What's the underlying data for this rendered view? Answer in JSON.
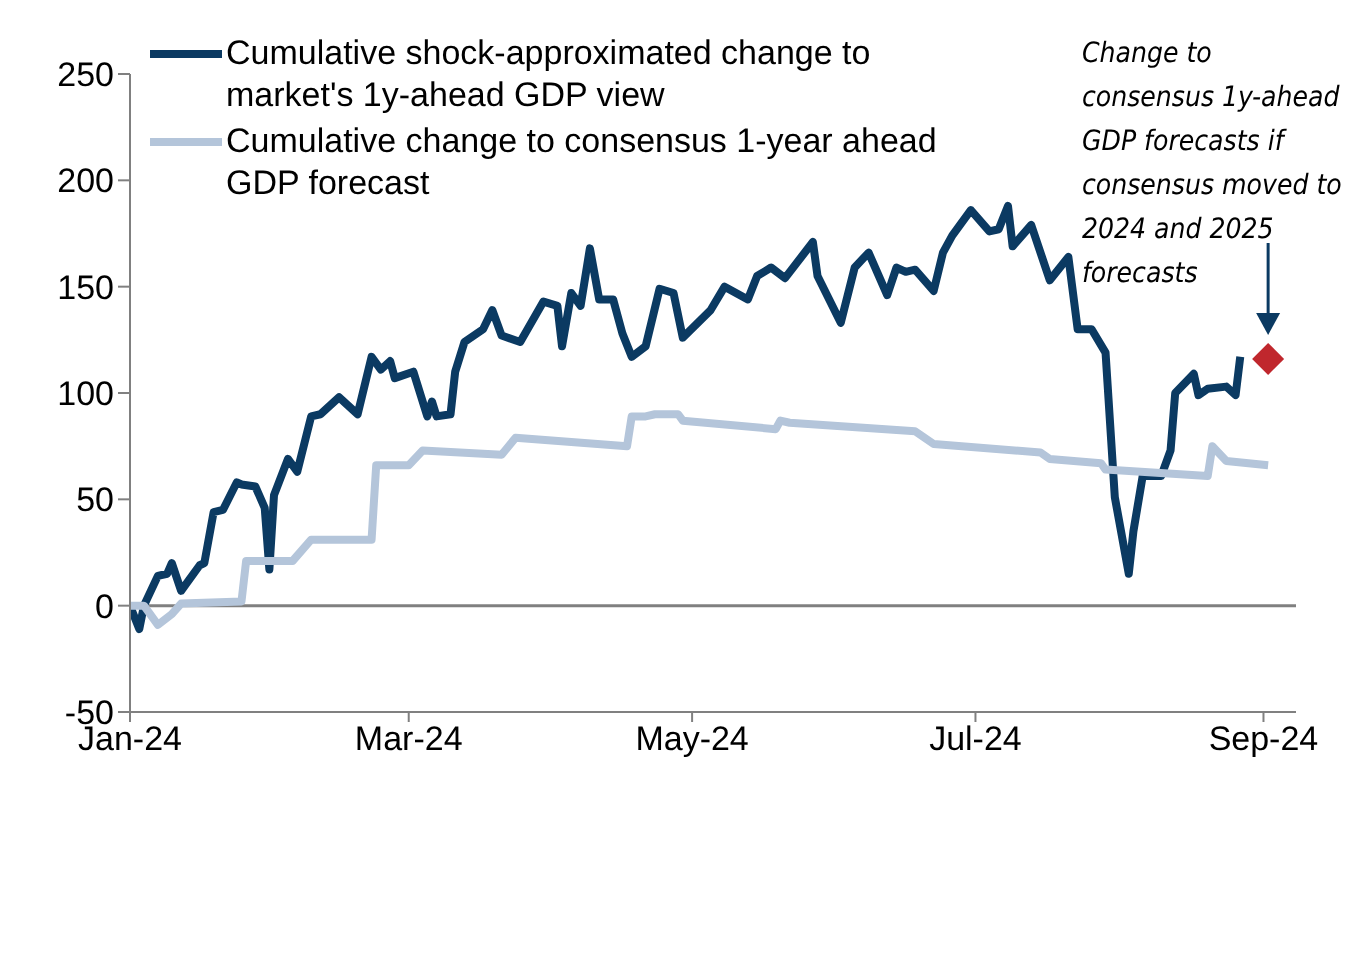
{
  "chart_data": {
    "type": "line",
    "xlim": [
      "2024-01-01",
      "2024-09-08"
    ],
    "xticks": [
      {
        "value": "2024-01-01",
        "label": "Jan-24"
      },
      {
        "value": "2024-03-01",
        "label": "Mar-24"
      },
      {
        "value": "2024-05-01",
        "label": "May-24"
      },
      {
        "value": "2024-07-01",
        "label": "Jul-24"
      },
      {
        "value": "2024-09-01",
        "label": "Sep-24"
      }
    ],
    "ylim": [
      -50,
      250
    ],
    "yticks": [
      -50,
      0,
      50,
      100,
      150,
      200,
      250
    ],
    "grid": false,
    "legend": "top left",
    "line_style": "solid",
    "marker": "none",
    "ref_lines": [
      {
        "axis": "y",
        "value": 0,
        "color": "#808080"
      }
    ],
    "annotations": [
      {
        "text": "Change to consensus 1y-ahead GDP forecasts if consensus moved to 2024 and 2025 forecasts",
        "x": "2024-09-02",
        "y": 116
      }
    ],
    "series": [
      {
        "name": "Cumulative shock-approximated change to market's 1y-ahead GDP view",
        "color": "#0b3a62",
        "x": [
          "2024-01-01",
          "2024-01-03",
          "2024-01-04",
          "2024-01-07",
          "2024-01-09",
          "2024-01-10",
          "2024-01-12",
          "2024-01-16",
          "2024-01-17",
          "2024-01-19",
          "2024-01-21",
          "2024-01-24",
          "2024-01-25",
          "2024-01-28",
          "2024-01-30",
          "2024-01-31",
          "2024-02-01",
          "2024-02-04",
          "2024-02-06",
          "2024-02-09",
          "2024-02-11",
          "2024-02-13",
          "2024-02-15",
          "2024-02-19",
          "2024-02-22",
          "2024-02-24",
          "2024-02-26",
          "2024-02-27",
          "2024-03-02",
          "2024-03-05",
          "2024-03-06",
          "2024-03-07",
          "2024-03-10",
          "2024-03-11",
          "2024-03-13",
          "2024-03-17",
          "2024-03-19",
          "2024-03-21",
          "2024-03-25",
          "2024-03-30",
          "2024-04-02",
          "2024-04-03",
          "2024-04-05",
          "2024-04-07",
          "2024-04-09",
          "2024-04-11",
          "2024-04-14",
          "2024-04-16",
          "2024-04-18",
          "2024-04-21",
          "2024-04-24",
          "2024-04-27",
          "2024-04-29",
          "2024-05-05",
          "2024-05-08",
          "2024-05-13",
          "2024-05-15",
          "2024-05-18",
          "2024-05-21",
          "2024-05-27",
          "2024-05-28",
          "2024-06-02",
          "2024-06-05",
          "2024-06-08",
          "2024-06-12",
          "2024-06-14",
          "2024-06-16",
          "2024-06-18",
          "2024-06-22",
          "2024-06-24",
          "2024-06-26",
          "2024-06-30",
          "2024-07-04",
          "2024-07-06",
          "2024-07-08",
          "2024-07-09",
          "2024-07-13",
          "2024-07-17",
          "2024-07-21",
          "2024-07-23",
          "2024-07-26",
          "2024-07-29",
          "2024-07-31",
          "2024-08-03",
          "2024-08-04",
          "2024-08-06",
          "2024-08-10",
          "2024-08-12",
          "2024-08-13",
          "2024-08-17",
          "2024-08-18",
          "2024-08-20",
          "2024-08-24",
          "2024-08-26",
          "2024-08-27"
        ],
        "values": [
          0,
          -11,
          0,
          14,
          15,
          20,
          7,
          19,
          20,
          44,
          45,
          58,
          57,
          56,
          46,
          17,
          52,
          69,
          63,
          89,
          90,
          94,
          98,
          90,
          117,
          111,
          115,
          107,
          110,
          89,
          96,
          89,
          90,
          110,
          124,
          130,
          139,
          127,
          124,
          143,
          141,
          122,
          147,
          141,
          168,
          144,
          144,
          128,
          117,
          122,
          149,
          147,
          126,
          139,
          150,
          144,
          155,
          159,
          154,
          171,
          155,
          133,
          159,
          166,
          146,
          159,
          157,
          158,
          148,
          166,
          174,
          186,
          176,
          177,
          188,
          169,
          179,
          153,
          164,
          130,
          130,
          119,
          51,
          15,
          35,
          61,
          61,
          73,
          100,
          109,
          99,
          102,
          103,
          99,
          117
        ]
      },
      {
        "name": "Cumulative change to consensus 1-year ahead GDP forecast",
        "color": "#b4c5da",
        "x": [
          "2024-01-01",
          "2024-01-04",
          "2024-01-07",
          "2024-01-10",
          "2024-01-12",
          "2024-01-25",
          "2024-01-26",
          "2024-02-05",
          "2024-02-09",
          "2024-02-22",
          "2024-02-23",
          "2024-03-01",
          "2024-03-04",
          "2024-03-21",
          "2024-03-24",
          "2024-04-17",
          "2024-04-18",
          "2024-04-21",
          "2024-04-23",
          "2024-04-28",
          "2024-04-29",
          "2024-05-19",
          "2024-05-20",
          "2024-05-22",
          "2024-06-18",
          "2024-06-22",
          "2024-07-15",
          "2024-07-17",
          "2024-07-28",
          "2024-07-29",
          "2024-08-20",
          "2024-08-21",
          "2024-08-24",
          "2024-09-02"
        ],
        "values": [
          0,
          0,
          -9,
          -4,
          1,
          2,
          21,
          21,
          31,
          31,
          66,
          66,
          73,
          71,
          79,
          75,
          89,
          89,
          90,
          90,
          87,
          83,
          87,
          86,
          82,
          76,
          72,
          69,
          67,
          64,
          61,
          75,
          68,
          66
        ]
      },
      {
        "type": "scatter",
        "marker": "diamond",
        "color": "#c0272d",
        "x": [
          "2024-09-02"
        ],
        "values": [
          116
        ]
      }
    ]
  }
}
